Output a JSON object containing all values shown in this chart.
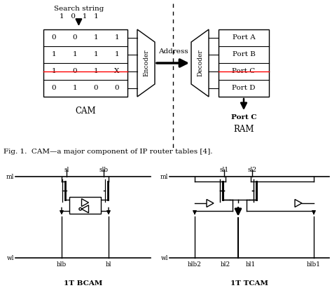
{
  "title": "Fig. 1.  CAM—a major component of IP router tables [4].",
  "bg_color": "#ffffff",
  "cam_table": [
    [
      "0",
      "0",
      "1",
      "1"
    ],
    [
      "1",
      "1",
      "1",
      "1"
    ],
    [
      "1",
      "0",
      "1",
      "X"
    ],
    [
      "0",
      "1",
      "0",
      "0"
    ]
  ],
  "ram_table": [
    "Port A",
    "Port B",
    "Port C",
    "Port D"
  ],
  "search_string_label": "Search string",
  "search_string_bits": "1  0  1  1",
  "cam_label": "CAM",
  "ram_label": "RAM",
  "encoder_label": "Encoder",
  "decoder_label": "Decoder",
  "address_label": "Address",
  "port_c_label": "Port C",
  "circuit_label_left": "1T BCAM",
  "circuit_label_right": "1T TCAM"
}
